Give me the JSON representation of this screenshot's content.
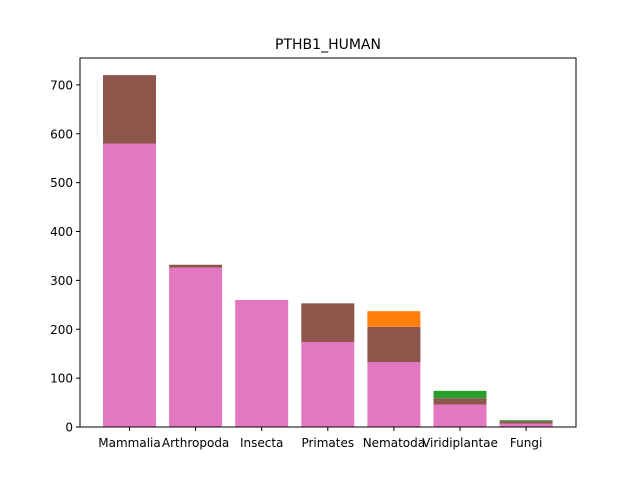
{
  "chart_data": {
    "type": "bar",
    "stacked": true,
    "title": "PTHB1_HUMAN",
    "xlabel": "",
    "ylabel": "",
    "categories": [
      "Mammalia",
      "Arthropoda",
      "Insecta",
      "Primates",
      "Nematoda",
      "Viridiplantae",
      "Fungi"
    ],
    "ylim": [
      0,
      755
    ],
    "yticks": [
      0,
      100,
      200,
      300,
      400,
      500,
      600,
      700
    ],
    "grid": false,
    "series": [
      {
        "color": "#e377c2",
        "values": [
          580,
          326,
          260,
          174,
          133,
          46,
          7
        ]
      },
      {
        "color": "#8c564b",
        "values": [
          140,
          6,
          0,
          79,
          72,
          13,
          5
        ]
      },
      {
        "color": "#2ca02c",
        "values": [
          0,
          0,
          0,
          0,
          0,
          15,
          2
        ]
      },
      {
        "color": "#ff7f0e",
        "values": [
          0,
          0,
          0,
          0,
          32,
          0,
          0
        ]
      }
    ]
  }
}
